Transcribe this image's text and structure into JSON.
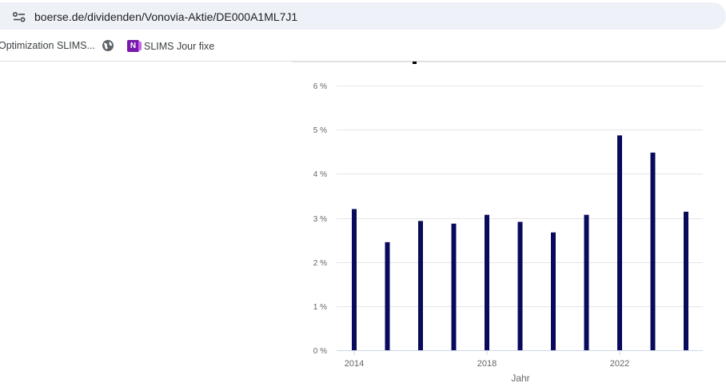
{
  "address_bar": {
    "url": "boerse.de/dividenden/Vonovia-Aktie/DE000A1ML7J1",
    "site_info_icon": "tune-icon"
  },
  "bookmarks": [
    {
      "label": "Optimization SLIMS...",
      "icon": "none"
    },
    {
      "label": "",
      "icon": "globe-icon"
    },
    {
      "label": "SLIMS Jour fixe",
      "icon": "onenote-icon"
    }
  ],
  "chart_data": {
    "type": "bar",
    "title": "",
    "xlabel": "Jahr",
    "ylabel": "",
    "ylim": [
      0,
      6
    ],
    "yticks": [
      0,
      1,
      2,
      3,
      4,
      5,
      6
    ],
    "ytick_labels": [
      "0 %",
      "1 %",
      "2 %",
      "3 %",
      "4 %",
      "5 %",
      "6 %"
    ],
    "xtick_labels": [
      "2014",
      "2018",
      "2022"
    ],
    "grid": true,
    "bar_color": "#0a0a5c",
    "categories": [
      "2014",
      "2015",
      "2016",
      "2017",
      "2018",
      "2019",
      "2020",
      "2021",
      "2022",
      "2023",
      "2024"
    ],
    "series": [
      {
        "values": [
          3.2,
          2.45,
          2.93,
          2.87,
          3.07,
          2.91,
          2.67,
          3.07,
          4.87,
          4.48,
          3.14
        ]
      }
    ]
  }
}
